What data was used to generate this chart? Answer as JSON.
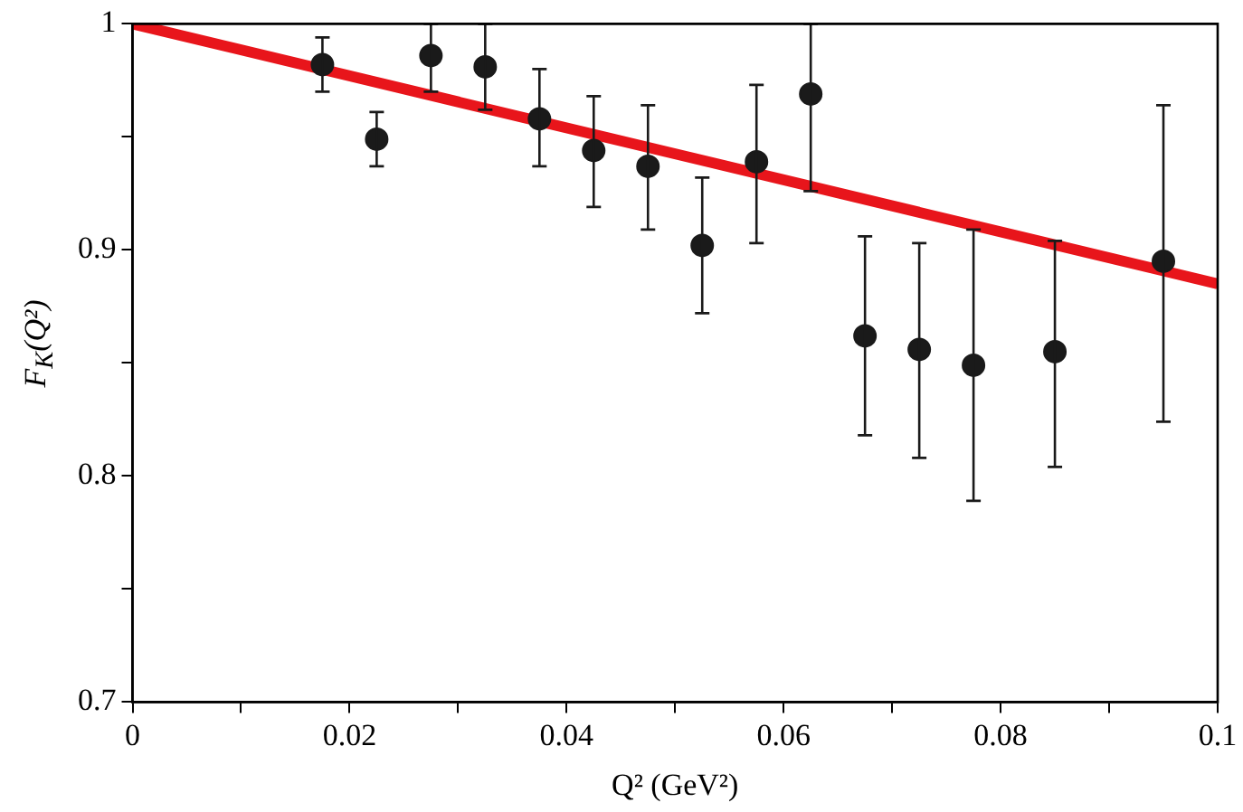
{
  "chart_data": {
    "type": "scatter",
    "xlabel": "Q² (GeV²)",
    "ylabel": "F$_{K}$(Q²)",
    "xlim": [
      0,
      0.1
    ],
    "xticks": [
      0,
      {
        "value": 0.01,
        "label": null
      },
      0.02,
      {
        "value": 0.03,
        "label": null
      },
      0.04,
      {
        "value": 0.05,
        "label": null
      },
      0.06,
      {
        "value": 0.07,
        "label": null
      },
      0.08,
      {
        "value": 0.09,
        "label": null
      },
      0.1
    ],
    "ylim": [
      0.7,
      1
    ],
    "yticks": [
      0.7,
      {
        "value": 0.75,
        "label": null
      },
      0.8,
      {
        "value": 0.85,
        "label": null
      },
      0.9,
      {
        "value": 0.95,
        "label": null
      },
      1
    ],
    "grid": false,
    "legend": false,
    "series": [
      {
        "color": "#1a1a1a",
        "marker": "circle",
        "x": [
          0.0175,
          0.0225,
          0.0275,
          0.0325,
          0.0375,
          0.0425,
          0.0475,
          0.0525,
          0.0575,
          0.0625,
          0.0675,
          0.0725,
          0.0775,
          0.085,
          0.095
        ],
        "values": [
          0.982,
          0.949,
          0.986,
          0.981,
          0.958,
          0.944,
          0.937,
          0.902,
          0.939,
          0.969,
          0.862,
          0.856,
          0.849,
          0.855,
          0.895
        ],
        "errors": [
          [
            0.97,
            0.994
          ],
          [
            0.937,
            0.961
          ],
          [
            0.97,
            1.0
          ],
          [
            0.962,
            1.0
          ],
          [
            0.937,
            0.98
          ],
          [
            0.919,
            0.968
          ],
          [
            0.909,
            0.964
          ],
          [
            0.872,
            0.932
          ],
          [
            0.903,
            0.973
          ],
          [
            0.926,
            1.0
          ],
          [
            0.818,
            0.906
          ],
          [
            0.808,
            0.903
          ],
          [
            0.789,
            0.909
          ],
          [
            0.804,
            0.904
          ],
          [
            0.824,
            0.964
          ]
        ]
      },
      {
        "type": "line",
        "color": "#e8151b",
        "marker": "none",
        "line_style": "solid",
        "x": [
          0,
          0.1
        ],
        "values": [
          1,
          0.885
        ]
      }
    ]
  }
}
